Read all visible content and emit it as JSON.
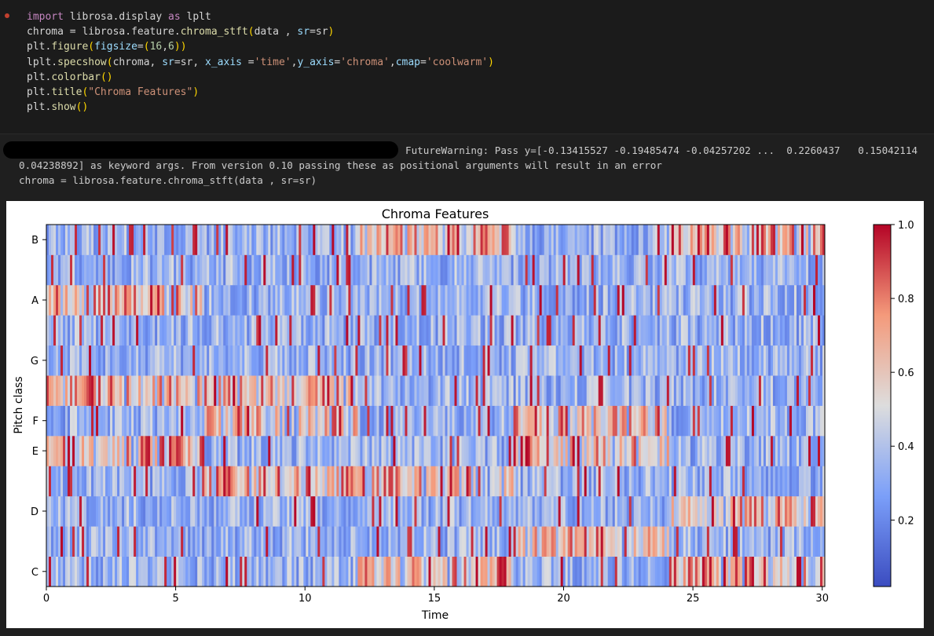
{
  "code_cell": {
    "lines": [
      "import librosa.display as lplt",
      "chroma = librosa.feature.chroma_stft(data , sr=sr)",
      "plt.figure(figsize=(16,6))",
      "lplt.specshow(chroma, sr=sr, x_axis ='time',y_axis='chroma',cmap='coolwarm')",
      "plt.colorbar()",
      "plt.title(\"Chroma Features\")",
      "plt.show()"
    ]
  },
  "output": {
    "warning_lines": [
      "FutureWarning: Pass y=[-0.13415527 -0.19485474 -0.04257202 ...  0.2260437   0.15042114",
      "0.04238892] as keyword args. From version 0.10 passing these as positional arguments will result in an error",
      "chroma = librosa.feature.chroma_stft(data , sr=sr)"
    ]
  },
  "chart_data": {
    "type": "heatmap",
    "title": "Chroma Features",
    "xlabel": "Time",
    "ylabel": "Pitch class",
    "x_ticks": [
      "0",
      "5",
      "10",
      "15",
      "20",
      "25",
      "30"
    ],
    "y_ticks": [
      "C",
      "D",
      "E",
      "F",
      "G",
      "A",
      "B"
    ],
    "xlim": [
      0,
      30.1
    ],
    "rows": 12,
    "colormap": "coolwarm",
    "colorbar": {
      "min": 0,
      "max": 1.0,
      "ticks": [
        "0.2",
        "0.4",
        "0.6",
        "0.8",
        "1.0"
      ]
    },
    "colors": {
      "low": "#3b4cc0",
      "mid": "#dddddd",
      "high": "#b40426"
    }
  }
}
